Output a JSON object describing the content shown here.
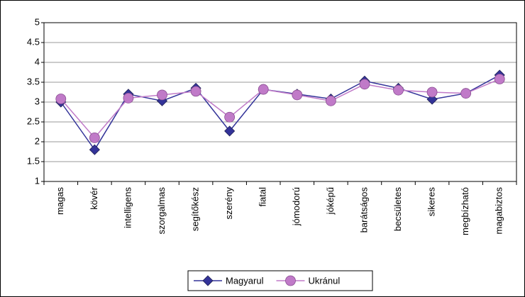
{
  "chart_data": {
    "type": "line",
    "categories": [
      "magas",
      "kövér",
      "intelligens",
      "szorgalmas",
      "segítőkész",
      "szerény",
      "fiatal",
      "jómodorú",
      "jóképű",
      "barátságos",
      "becsületes",
      "sikeres",
      "megbízható",
      "magabiztos"
    ],
    "series": [
      {
        "name": "Magyarul",
        "color": "#333399",
        "marker": "diamond",
        "values": [
          3.0,
          1.8,
          3.2,
          3.03,
          3.35,
          2.27,
          3.32,
          3.2,
          3.08,
          3.53,
          3.35,
          3.07,
          3.22,
          3.68
        ]
      },
      {
        "name": "Ukránul",
        "color": "#c07ac8",
        "marker": "circle",
        "values": [
          3.08,
          2.1,
          3.1,
          3.18,
          3.27,
          2.62,
          3.32,
          3.18,
          3.03,
          3.45,
          3.3,
          3.25,
          3.22,
          3.58
        ]
      }
    ],
    "ylim": [
      1,
      5
    ],
    "yticks": [
      1,
      1.5,
      2,
      2.5,
      3,
      3.5,
      4,
      4.5,
      5
    ],
    "grid": true,
    "legend": "bottom"
  }
}
